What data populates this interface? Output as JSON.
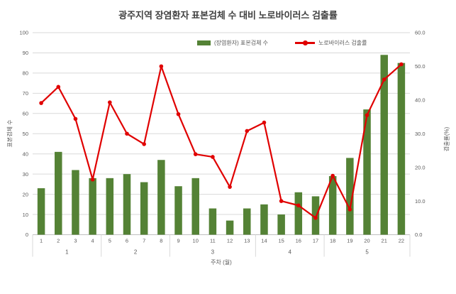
{
  "chart_data": {
    "type": "combo-bar-line",
    "title": "광주지역 장염환자 표본검체 수 대비 노로바이러스 검출률",
    "x_title": "주차 (월)",
    "categories": [
      1,
      2,
      3,
      4,
      5,
      6,
      7,
      8,
      9,
      10,
      11,
      12,
      13,
      14,
      15,
      16,
      17,
      18,
      19,
      20,
      21,
      22
    ],
    "month_groups": [
      {
        "label": "1",
        "span": 4
      },
      {
        "label": "2",
        "span": 4
      },
      {
        "label": "3",
        "span": 5
      },
      {
        "label": "4",
        "span": 4
      },
      {
        "label": "5",
        "span": 5
      }
    ],
    "series": [
      {
        "name": "(장염환자) 표본검체 수",
        "type": "bar",
        "axis": "left",
        "color": "#548235",
        "values": [
          23,
          41,
          32,
          28,
          28,
          30,
          26,
          37,
          24,
          28,
          13,
          7,
          13,
          15,
          10,
          21,
          19,
          29,
          38,
          62,
          89,
          85
        ]
      },
      {
        "name": "노로바이러스 검출률",
        "type": "line",
        "axis": "right",
        "color": "#e00000",
        "values": [
          39.1,
          43.9,
          34.4,
          16.4,
          39.3,
          30.0,
          26.9,
          50.0,
          35.8,
          23.9,
          23.1,
          14.2,
          30.8,
          33.3,
          10.0,
          8.7,
          5.0,
          17.5,
          7.5,
          35.5,
          46.1,
          50.6
        ]
      }
    ],
    "left_axis": {
      "title": "표본검체 수",
      "min": 0,
      "max": 100,
      "step": 10,
      "tick_format": "integer"
    },
    "right_axis": {
      "title": "검출률(%)",
      "min": 0,
      "max": 60,
      "step": 10,
      "tick_format": "one-decimal"
    },
    "grid": true,
    "legend_position": "top-inside"
  },
  "colors": {
    "bar": "#548235",
    "line": "#e00000",
    "gridline": "#d9d9d9",
    "axis_line": "#bfbfbf",
    "tick_text": "#595959",
    "title_text": "#404040"
  }
}
